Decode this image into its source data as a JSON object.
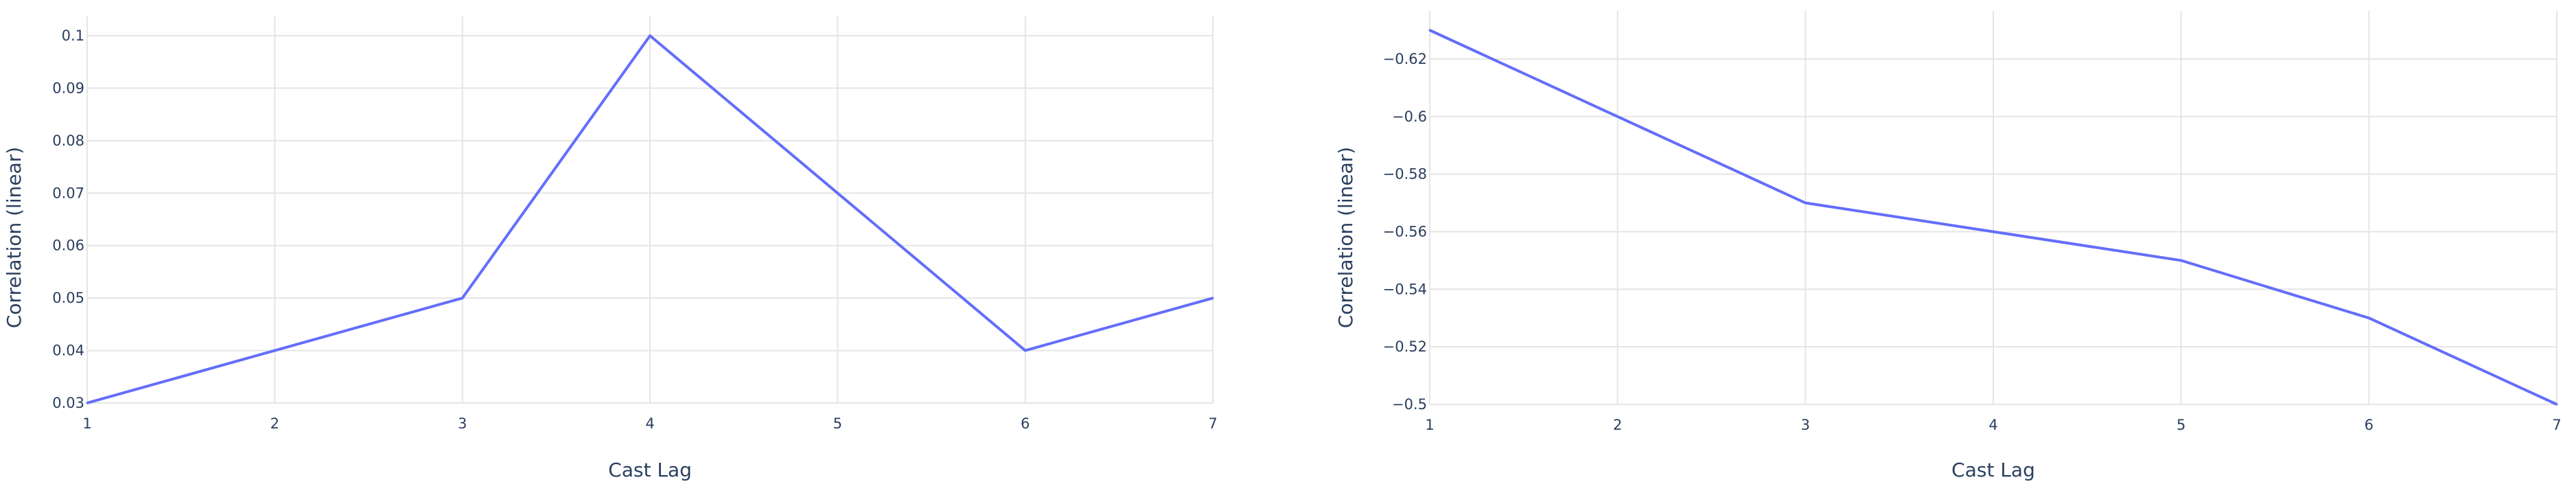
{
  "colors": {
    "background": "#ffffff",
    "grid": "#e5e5e5",
    "series_line": "#636efa",
    "text": "#2a3f5f"
  },
  "chart_data": [
    {
      "type": "line",
      "xlabel": "Cast Lag",
      "ylabel": "Correlation (linear)",
      "grid": true,
      "x": [
        1,
        2,
        3,
        4,
        5,
        6,
        7
      ],
      "series": [
        {
          "values": [
            0.03,
            0.04,
            0.05,
            0.1,
            0.07,
            0.04,
            0.05
          ]
        }
      ],
      "xlim": [
        1,
        7
      ],
      "ylim": [
        0.03,
        0.1
      ],
      "x_ticks": [
        "1",
        "2",
        "3",
        "4",
        "5",
        "6",
        "7"
      ],
      "y_ticks": [
        0.03,
        0.04,
        0.05,
        0.06,
        0.07,
        0.08,
        0.09,
        0.1
      ],
      "y_tick_labels": [
        "0.03",
        "0.04",
        "0.05",
        "0.06",
        "0.07",
        "0.08",
        "0.09",
        "0.1"
      ],
      "y_reversed": false
    },
    {
      "type": "line",
      "xlabel": "Cast Lag",
      "ylabel": "Correlation (linear)",
      "grid": true,
      "x": [
        1,
        2,
        3,
        4,
        5,
        6,
        7
      ],
      "series": [
        {
          "values": [
            -0.63,
            -0.6,
            -0.57,
            -0.56,
            -0.55,
            -0.53,
            -0.5
          ]
        }
      ],
      "xlim": [
        1,
        7
      ],
      "ylim": [
        -0.63,
        -0.5
      ],
      "x_ticks": [
        "1",
        "2",
        "3",
        "4",
        "5",
        "6",
        "7"
      ],
      "y_ticks": [
        -0.62,
        -0.6,
        -0.58,
        -0.56,
        -0.54,
        -0.52,
        -0.5
      ],
      "y_tick_labels": [
        "−0.62",
        "−0.6",
        "−0.58",
        "−0.56",
        "−0.54",
        "−0.52",
        "−0.5"
      ],
      "y_reversed": true
    }
  ]
}
